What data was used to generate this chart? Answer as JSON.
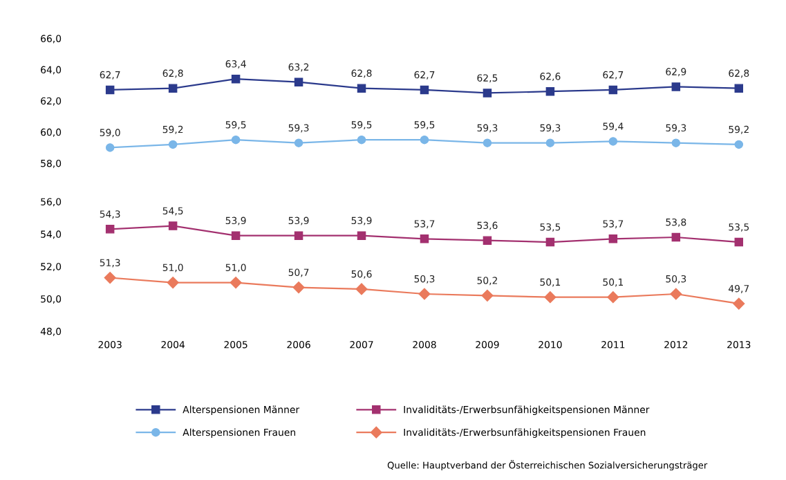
{
  "chart_data": [
    {
      "type": "line",
      "categories": [
        "2003",
        "2004",
        "2005",
        "2006",
        "2007",
        "2008",
        "2009",
        "2010",
        "2011",
        "2012",
        "2013"
      ],
      "ylim": [
        58,
        66
      ],
      "yticks": [
        {
          "value": 58,
          "label": "58,0"
        },
        {
          "value": 60,
          "label": "60,0"
        },
        {
          "value": 62,
          "label": "62,0"
        },
        {
          "value": 64,
          "label": "64,0"
        },
        {
          "value": 66,
          "label": "66,0"
        }
      ],
      "tick_labels": "y",
      "grid": false,
      "legend": "bottom",
      "series": [
        {
          "name": "Alterspensionen Männer",
          "color": "#2b3a8c",
          "marker": "square",
          "values": [
            62.7,
            62.8,
            63.4,
            63.2,
            62.8,
            62.7,
            62.5,
            62.6,
            62.7,
            62.9,
            62.8
          ],
          "value_labels": [
            "62,7",
            "62,8",
            "63,4",
            "63,2",
            "62,8",
            "62,7",
            "62,5",
            "62,6",
            "62,7",
            "62,9",
            "62,8"
          ]
        },
        {
          "name": "Alterspensionen Frauen",
          "color": "#7ab6e8",
          "marker": "circle",
          "values": [
            59.0,
            59.2,
            59.5,
            59.3,
            59.5,
            59.5,
            59.3,
            59.3,
            59.4,
            59.3,
            59.2
          ],
          "value_labels": [
            "59,0",
            "59,2",
            "59,5",
            "59,3",
            "59,5",
            "59,5",
            "59,3",
            "59,3",
            "59,4",
            "59,3",
            "59,2"
          ]
        }
      ]
    },
    {
      "type": "line",
      "categories": [
        "2003",
        "2004",
        "2005",
        "2006",
        "2007",
        "2008",
        "2009",
        "2010",
        "2011",
        "2012",
        "2013"
      ],
      "ylim": [
        48,
        56
      ],
      "yticks": [
        {
          "value": 48,
          "label": "48,0"
        },
        {
          "value": 50,
          "label": "50,0"
        },
        {
          "value": 52,
          "label": "52,0"
        },
        {
          "value": 54,
          "label": "54,0"
        },
        {
          "value": 56,
          "label": "56,0"
        }
      ],
      "grid": false,
      "legend": "bottom",
      "annotations": [
        "Quelle: Hauptverband der Österreichischen Sozialversicherungsträger"
      ],
      "series": [
        {
          "name": "Invaliditäts-/Erwerbsunfähigkeitspensionen Männer",
          "color": "#a3306f",
          "marker": "square",
          "values": [
            54.3,
            54.5,
            53.9,
            53.9,
            53.9,
            53.7,
            53.6,
            53.5,
            53.7,
            53.8,
            53.5
          ],
          "value_labels": [
            "54,3",
            "54,5",
            "53,9",
            "53,9",
            "53,9",
            "53,7",
            "53,6",
            "53,5",
            "53,7",
            "53,8",
            "53,5"
          ]
        },
        {
          "name": "Invaliditäts-/Erwerbsunfähigkeitspensionen Frauen",
          "color": "#ea7a5c",
          "marker": "diamond",
          "values": [
            51.3,
            51.0,
            51.0,
            50.7,
            50.6,
            50.3,
            50.2,
            50.1,
            50.1,
            50.3,
            49.7
          ],
          "value_labels": [
            "51,3",
            "51,0",
            "51,0",
            "50,7",
            "50,6",
            "50,3",
            "50,2",
            "50,1",
            "50,1",
            "50,3",
            "49,7"
          ]
        }
      ]
    }
  ]
}
